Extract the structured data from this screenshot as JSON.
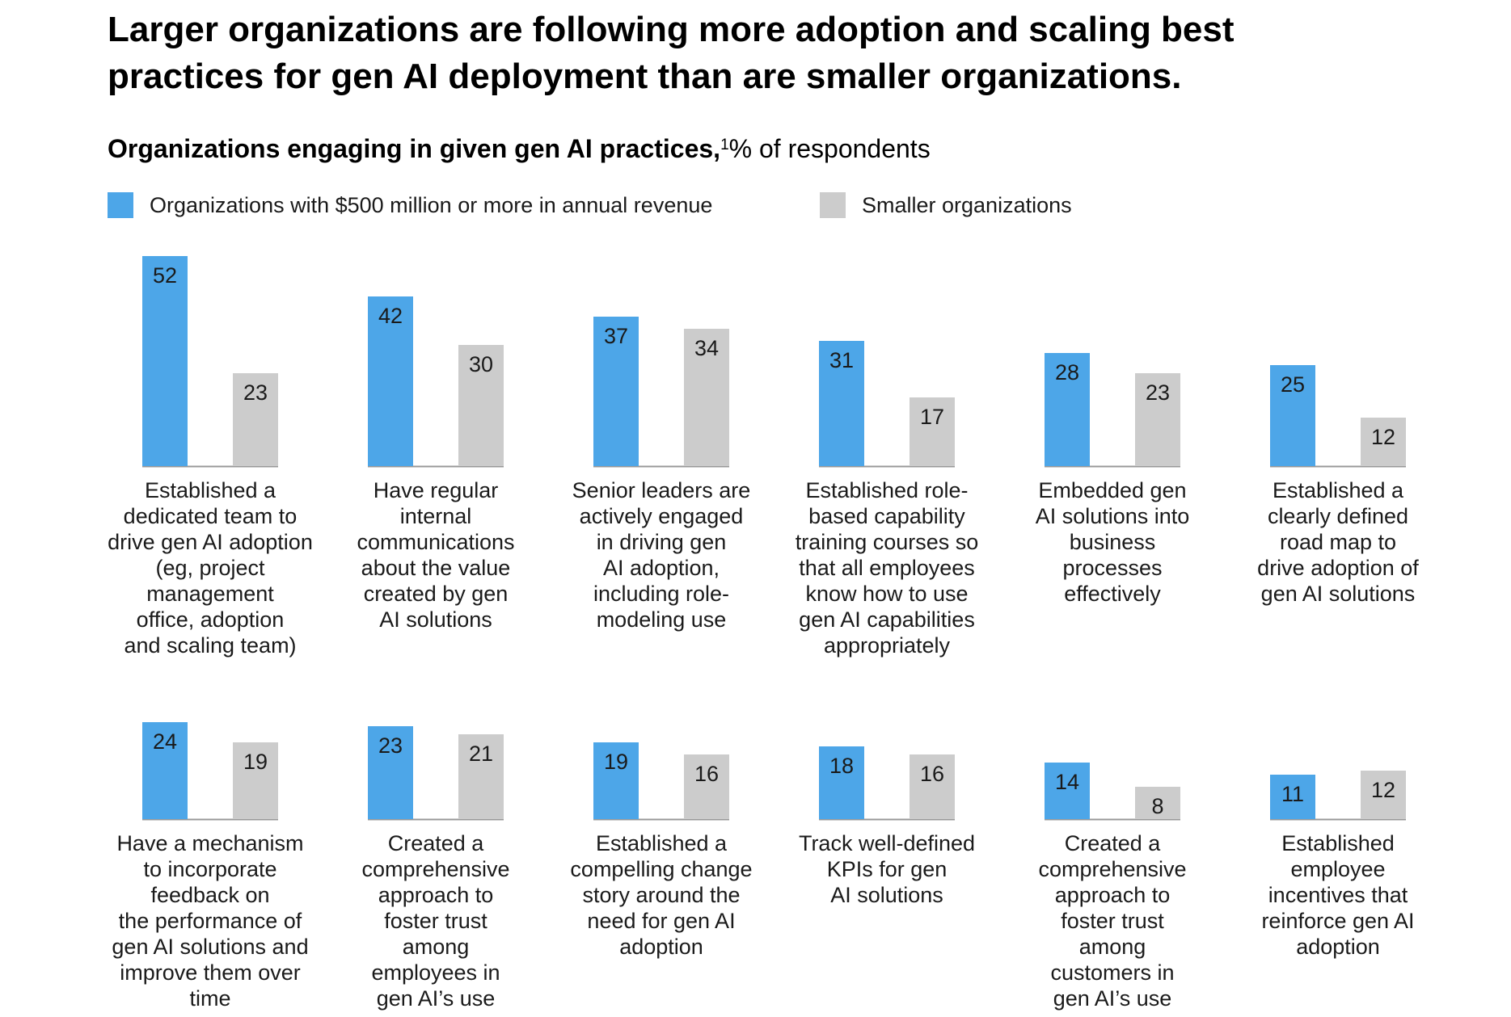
{
  "title": "Larger organizations are following more adoption and scaling best practices for gen AI deployment than are smaller organizations.",
  "subtitle": {
    "bold": "Organizations engaging in given gen AI practices,",
    "footnote": "1",
    "rest": "% of respondents"
  },
  "colors": {
    "large": "#4da6e8",
    "small": "#cccccc",
    "axis": "#999999"
  },
  "chart_data": {
    "type": "bar",
    "title": "Organizations engaging in given gen AI practices, % of respondents",
    "series": [
      {
        "name": "Organizations with $500 million or more in annual revenue",
        "values": [
          52,
          42,
          37,
          31,
          28,
          25,
          24,
          23,
          19,
          18,
          14,
          11
        ]
      },
      {
        "name": "Smaller organizations",
        "values": [
          23,
          30,
          34,
          17,
          23,
          12,
          19,
          21,
          16,
          16,
          8,
          12
        ]
      }
    ],
    "categories": [
      [
        "Established a",
        "dedicated team to",
        "drive gen AI adoption",
        "(eg, project",
        "management",
        "office, adoption",
        "and scaling team)"
      ],
      [
        "Have regular",
        "internal",
        "communications",
        "about the value",
        "created by gen",
        "AI solutions"
      ],
      [
        "Senior leaders are",
        "actively engaged",
        "in driving gen",
        "AI adoption,",
        "including role-",
        "modeling use"
      ],
      [
        "Established role-",
        "based capability",
        "training courses so",
        "that all employees",
        "know how to use",
        "gen AI capabilities",
        "appropriately"
      ],
      [
        "Embedded gen",
        "AI solutions into",
        "business",
        "processes",
        "effectively"
      ],
      [
        "Established a",
        "clearly defined",
        "road map to",
        "drive adoption of",
        "gen AI solutions"
      ],
      [
        "Have a mechanism",
        "to incorporate",
        "feedback on",
        "the performance of",
        "gen AI solutions and",
        "improve them over",
        "time"
      ],
      [
        "Created a",
        "comprehensive",
        "approach to",
        "foster trust",
        "among",
        "employees in",
        "gen AI’s use"
      ],
      [
        "Established a",
        "compelling change",
        "story around the",
        "need for gen AI",
        "adoption"
      ],
      [
        "Track well-defined",
        "KPIs for gen",
        "AI solutions"
      ],
      [
        "Created a",
        "comprehensive",
        "approach to",
        "foster trust",
        "among",
        "customers in",
        "gen AI’s use"
      ],
      [
        "Established",
        "employee",
        "incentives that",
        "reinforce gen AI",
        "adoption"
      ]
    ],
    "legend": "top",
    "grid": false
  }
}
